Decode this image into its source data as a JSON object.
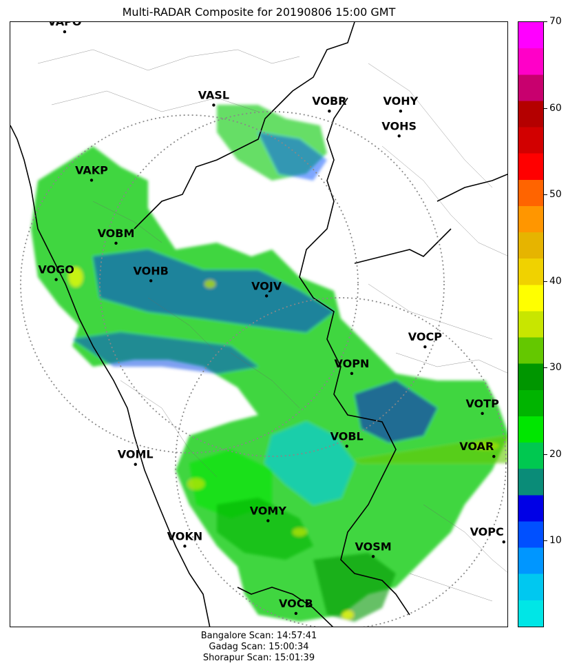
{
  "title": "Multi-RADAR Composite for 20190806 15:00 GMT",
  "footer": [
    "Bangalore Scan: 14:57:41",
    "Gadag Scan: 15:00:34",
    "Shorapur Scan: 15:01:39"
  ],
  "colorbar": {
    "min": 0,
    "max": 70,
    "ticks": [
      10,
      20,
      30,
      40,
      50,
      60,
      70
    ],
    "tick_labels": [
      "10",
      "20",
      "30",
      "40",
      "50",
      "60",
      "70"
    ],
    "colors": [
      "#00e6e6",
      "#00c8f0",
      "#0096ff",
      "#0050ff",
      "#0000e6",
      "#0a8c78",
      "#00c850",
      "#00e600",
      "#00b400",
      "#009600",
      "#64c800",
      "#c8e600",
      "#ffff00",
      "#f0d200",
      "#e6b400",
      "#ff9600",
      "#ff6400",
      "#ff0000",
      "#d20000",
      "#b40000",
      "#c8006e",
      "#ff00c8",
      "#ff00ff"
    ]
  },
  "stations": [
    {
      "code": "VAPO",
      "lon": 0.109,
      "lat": 0.016
    },
    {
      "code": "VASL",
      "lon": 0.408,
      "lat": 0.137
    },
    {
      "code": "VOBR",
      "lon": 0.64,
      "lat": 0.147
    },
    {
      "code": "VOHY",
      "lon": 0.783,
      "lat": 0.147
    },
    {
      "code": "VOHS",
      "lon": 0.78,
      "lat": 0.188
    },
    {
      "code": "VAKP",
      "lon": 0.163,
      "lat": 0.261
    },
    {
      "code": "VOBM",
      "lon": 0.212,
      "lat": 0.365
    },
    {
      "code": "VOGO",
      "lon": 0.092,
      "lat": 0.425
    },
    {
      "code": "VOHB",
      "lon": 0.282,
      "lat": 0.427
    },
    {
      "code": "VOJV",
      "lon": 0.514,
      "lat": 0.452
    },
    {
      "code": "VOCP",
      "lon": 0.832,
      "lat": 0.536
    },
    {
      "code": "VOPN",
      "lon": 0.685,
      "lat": 0.58
    },
    {
      "code": "VOTP",
      "lon": 0.947,
      "lat": 0.646
    },
    {
      "code": "VOBL",
      "lon": 0.675,
      "lat": 0.7
    },
    {
      "code": "VOAR",
      "lon": 0.97,
      "lat": 0.717
    },
    {
      "code": "VOML",
      "lon": 0.251,
      "lat": 0.73
    },
    {
      "code": "VOMY",
      "lon": 0.517,
      "lat": 0.823
    },
    {
      "code": "VOKN",
      "lon": 0.35,
      "lat": 0.865
    },
    {
      "code": "VOPC",
      "lon": 0.99,
      "lat": 0.858
    },
    {
      "code": "VOSM",
      "lon": 0.728,
      "lat": 0.882
    },
    {
      "code": "VOCB",
      "lon": 0.573,
      "lat": 0.976
    }
  ]
}
